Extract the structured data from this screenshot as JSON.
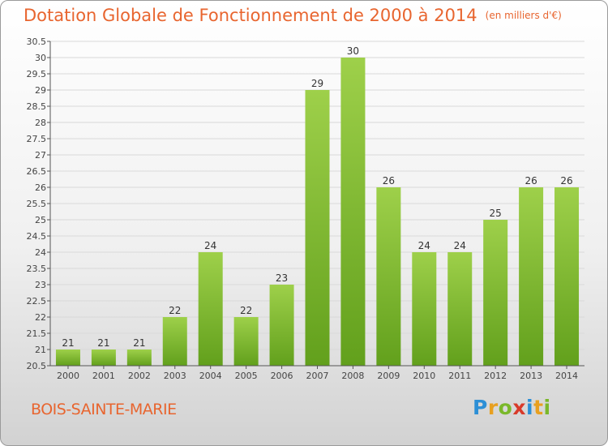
{
  "header": {
    "title": "Dotation Globale de Fonctionnement de 2000 à 2014",
    "subtitle": "(en milliers d'€)"
  },
  "footer": {
    "commune": "BOIS-SAINTE-MARIE",
    "logo_letters": [
      "P",
      "r",
      "o",
      "x",
      "i",
      "t",
      "i"
    ],
    "logo_colors": [
      "#2c8fd6",
      "#e8a020",
      "#7ab82a",
      "#d83a2a",
      "#2c8fd6",
      "#e8a020",
      "#7ab82a"
    ]
  },
  "colors": {
    "title": "#e8652f",
    "bar_top": "#9ed04a",
    "bar_bottom": "#62a01c",
    "grid": "#d9d9d9"
  },
  "chart_data": {
    "type": "bar",
    "categories": [
      "2000",
      "2001",
      "2002",
      "2003",
      "2004",
      "2005",
      "2006",
      "2007",
      "2008",
      "2009",
      "2010",
      "2011",
      "2012",
      "2013",
      "2014"
    ],
    "values": [
      21,
      21,
      21,
      22,
      24,
      22,
      23,
      29,
      30,
      26,
      24,
      24,
      25,
      26,
      26
    ],
    "ylim": [
      20.5,
      30.5
    ],
    "yticks": [
      "20.5",
      "21",
      "21.5",
      "22",
      "22.5",
      "23",
      "23.5",
      "24",
      "24.5",
      "25",
      "25.5",
      "26",
      "26.5",
      "27",
      "27.5",
      "28",
      "28.5",
      "29",
      "29.5",
      "30",
      "30.5"
    ],
    "grid": true,
    "legend": "none",
    "data_labels": true
  }
}
